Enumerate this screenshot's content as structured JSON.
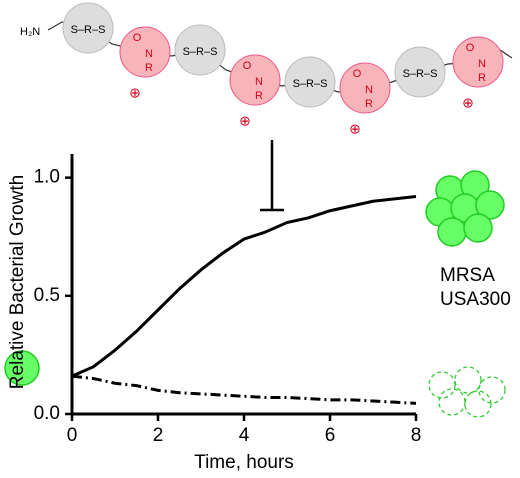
{
  "polymer": {
    "end_group": "H₂N",
    "units": [
      {
        "linker": "S–R–S",
        "carbonyl": "O",
        "nitrogen": "N",
        "substituent": "R",
        "charge": "⊕"
      },
      {
        "linker": "S–R–S",
        "carbonyl": "O",
        "nitrogen": "N",
        "substituent": "R",
        "charge": "⊕"
      },
      {
        "linker": "S–R–S",
        "carbonyl": "O",
        "nitrogen": "N",
        "substituent": "R",
        "charge": "⊕"
      },
      {
        "linker": "S–R–S",
        "carbonyl": "O",
        "nitrogen": "N",
        "substituent": "R",
        "charge": "⊕"
      }
    ]
  },
  "chart_data": {
    "type": "line",
    "x_label": "Time, hours",
    "y_label": "Relative Bacterial Growth",
    "annotations": [
      "MRSA",
      "USA300"
    ],
    "x": [
      0,
      0.5,
      1,
      1.5,
      2,
      2.5,
      3,
      3.5,
      4,
      4.5,
      5,
      5.5,
      6,
      6.5,
      7,
      7.5,
      8
    ],
    "series": [
      {
        "color": "#000000",
        "dash": "solid",
        "values": [
          0.16,
          0.2,
          0.27,
          0.35,
          0.44,
          0.53,
          0.61,
          0.68,
          0.74,
          0.77,
          0.81,
          0.83,
          0.86,
          0.88,
          0.9,
          0.91,
          0.92
        ]
      },
      {
        "color": "#000000",
        "dash": "dash-dot",
        "values": [
          0.16,
          0.15,
          0.13,
          0.12,
          0.1,
          0.09,
          0.085,
          0.08,
          0.075,
          0.07,
          0.07,
          0.065,
          0.06,
          0.06,
          0.055,
          0.05,
          0.045
        ]
      }
    ],
    "xlim": [
      0,
      8
    ],
    "ylim": [
      0,
      1.1
    ],
    "xticks": [
      0,
      2,
      4,
      6,
      8
    ],
    "yticks": [
      {
        "value": 0,
        "label": "0.0"
      },
      {
        "value": 0.5,
        "label": "0.5"
      },
      {
        "value": 1,
        "label": "1.0"
      }
    ],
    "grid": false
  }
}
